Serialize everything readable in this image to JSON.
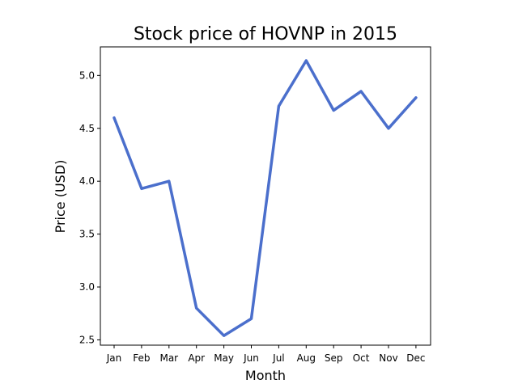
{
  "chart_data": {
    "type": "line",
    "title": "Stock price of HOVNP in 2015",
    "xlabel": "Month",
    "ylabel": "Price (USD)",
    "categories": [
      "Jan",
      "Feb",
      "Mar",
      "Apr",
      "May",
      "Jun",
      "Jul",
      "Aug",
      "Sep",
      "Oct",
      "Nov",
      "Dec"
    ],
    "values": [
      4.6,
      3.93,
      4.0,
      2.8,
      2.54,
      2.7,
      4.71,
      5.14,
      4.67,
      4.85,
      4.5,
      4.79
    ],
    "yticks": [
      "2.5",
      "3.0",
      "3.5",
      "4.0",
      "4.5",
      "5.0"
    ],
    "ylim": [
      2.45,
      5.27
    ],
    "grid": false,
    "line_color": "#4b6fcc"
  }
}
